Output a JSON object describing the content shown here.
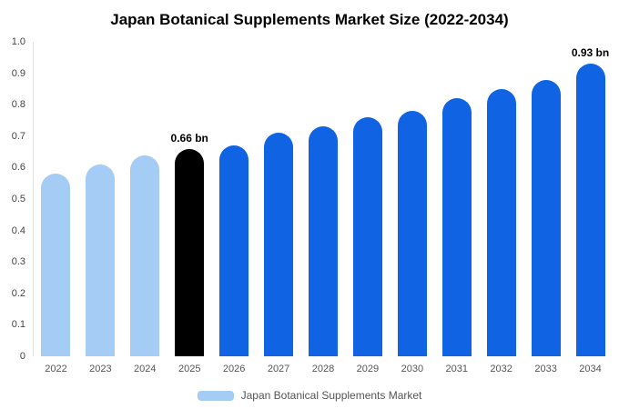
{
  "chart_data": {
    "type": "bar",
    "title": "Japan Botanical Supplements Market Size (2022-2034)",
    "categories": [
      "2022",
      "2023",
      "2024",
      "2025",
      "2026",
      "2027",
      "2028",
      "2029",
      "2030",
      "2031",
      "2032",
      "2033",
      "2034"
    ],
    "values": [
      0.58,
      0.61,
      0.64,
      0.66,
      0.67,
      0.71,
      0.73,
      0.76,
      0.78,
      0.82,
      0.85,
      0.88,
      0.93
    ],
    "bar_colors": [
      "#A4CCF4",
      "#A4CCF4",
      "#A4CCF4",
      "#000000",
      "#1064E3",
      "#1064E3",
      "#1064E3",
      "#1064E3",
      "#1064E3",
      "#1064E3",
      "#1064E3",
      "#1064E3",
      "#1064E3"
    ],
    "annotations": [
      {
        "index": 3,
        "text": "0.66 bn"
      },
      {
        "index": 12,
        "text": "0.93 bn"
      }
    ],
    "ylim": [
      0,
      1.0
    ],
    "y_ticks": [
      "0",
      "0.1",
      "0.2",
      "0.3",
      "0.4",
      "0.5",
      "0.6",
      "0.7",
      "0.8",
      "0.9",
      "1.0"
    ],
    "xlabel": "",
    "ylabel": "",
    "grid": false,
    "legend": {
      "label": "Japan Botanical Supplements Market",
      "swatch_color": "#A4CCF4",
      "position": "bottom"
    }
  }
}
